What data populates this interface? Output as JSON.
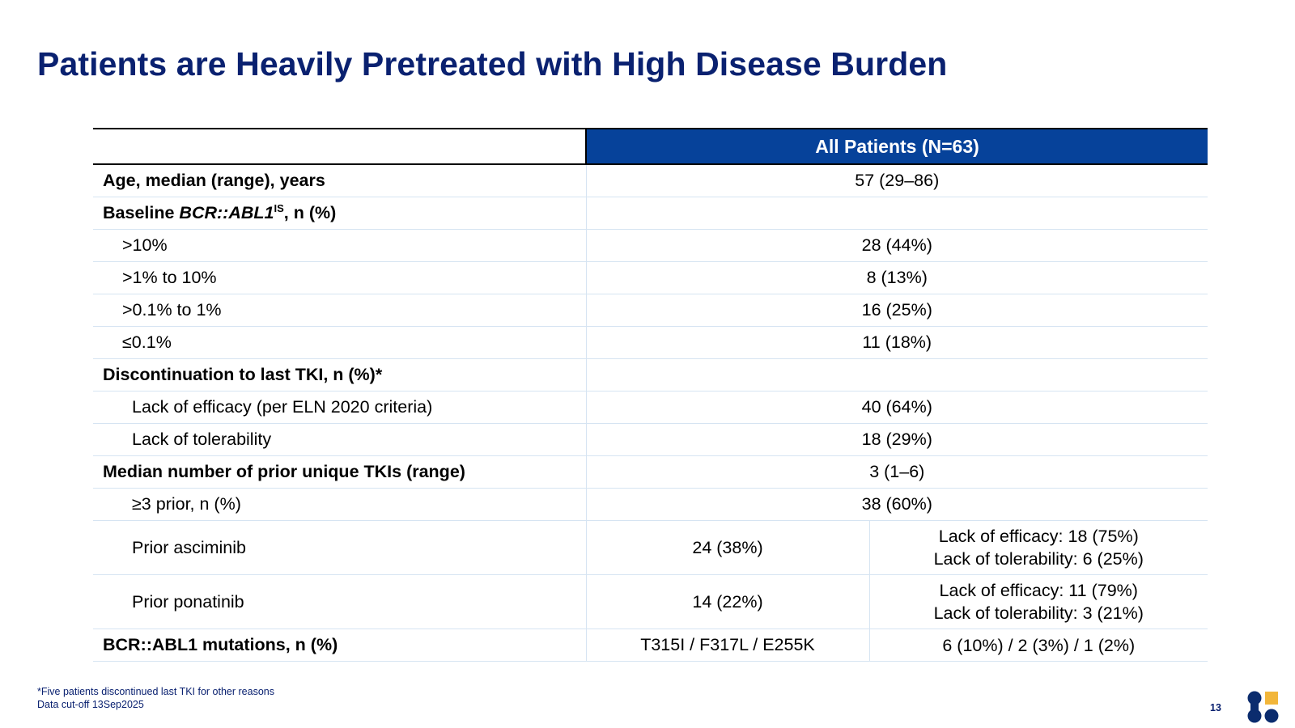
{
  "title": "Patients are Heavily Pretreated with High Disease Burden",
  "table": {
    "header": "All Patients (N=63)",
    "rows": [
      {
        "label": "Age, median (range), years",
        "value": "57 (29–86)"
      },
      {
        "label_pre": "Baseline ",
        "label_italic": "BCR::ABL1",
        "label_sup": "IS",
        "label_post": ", n (%)",
        "value": ""
      },
      {
        "label": ">10%",
        "value": "28 (44%)"
      },
      {
        "label": ">1% to 10%",
        "value": "8 (13%)"
      },
      {
        "label": ">0.1% to 1%",
        "value": "16 (25%)"
      },
      {
        "label": "≤0.1%",
        "value": "11 (18%)"
      },
      {
        "label": "Discontinuation to last TKI, n (%)*",
        "value": ""
      },
      {
        "label": "Lack of efficacy (per ELN 2020 criteria)",
        "value": "40 (64%)"
      },
      {
        "label": "Lack of tolerability",
        "value": "18 (29%)"
      },
      {
        "label": "Median number of prior unique TKIs (range)",
        "value": "3 (1–6)"
      },
      {
        "label": "≥3 prior, n (%)",
        "value": "38 (60%)"
      },
      {
        "label": "Prior asciminib",
        "value": "24 (38%)",
        "sub1": "Lack of efficacy: 18 (75%)",
        "sub2": "Lack of tolerability: 6 (25%)"
      },
      {
        "label": "Prior ponatinib",
        "value": "14 (22%)",
        "sub1": "Lack of efficacy: 11 (79%)",
        "sub2": "Lack of tolerability: 3 (21%)"
      },
      {
        "label": "BCR::ABL1 mutations, n (%)",
        "value": "T315I / F317L / E255K",
        "sub1": "6 (10%) / 2 (3%) / 1 (2%)"
      }
    ]
  },
  "footnotes": {
    "line1": "*Five patients discontinued last TKI for other reasons",
    "line2": "Data cut-off 13Sep2025"
  },
  "page_number": "13",
  "colors": {
    "title": "#0a2170",
    "header_bg": "#06429a",
    "row_divider": "#d6e4f2",
    "logo_navy": "#0b2c6e",
    "logo_gold": "#f2b63a"
  },
  "logo": {
    "icon": "company-logo-icon"
  }
}
